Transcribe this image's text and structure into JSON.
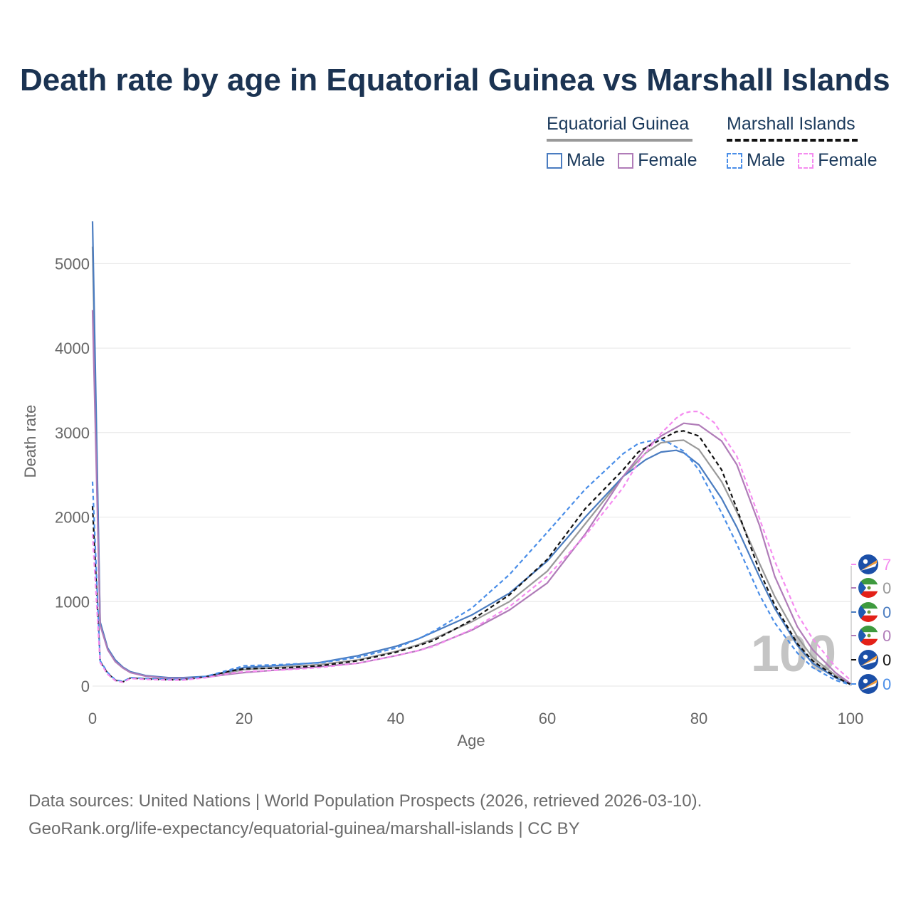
{
  "title": "Death rate by age in Equatorial Guinea vs Marshall Islands",
  "legend": {
    "group1": "Equatorial Guinea",
    "group2": "Marshall Islands",
    "male": "Male",
    "female": "Female"
  },
  "footer": {
    "line1": "Data sources: United Nations | World Population Prospects (2026, retrieved 2026-03-10).",
    "line2": "GeoRank.org/life-expectancy/equatorial-guinea/marshall-islands | CC BY"
  },
  "colors": {
    "eq_male": "#4a7cc0",
    "eq_female": "#b07cb8",
    "eq_total": "#999999",
    "mh_male": "#4a8ee8",
    "mh_female": "#f58cf0",
    "mh_total": "#111111"
  },
  "chart_data": {
    "type": "line",
    "title": "Death rate by age in Equatorial Guinea vs Marshall Islands",
    "xlabel": "Age",
    "ylabel": "Death rate",
    "xlim": [
      0,
      100
    ],
    "ylim": [
      0,
      5500
    ],
    "xticks": [
      0,
      20,
      40,
      60,
      80,
      100
    ],
    "yticks": [
      0,
      1000,
      2000,
      3000,
      4000,
      5000
    ],
    "year_watermark": "100",
    "series": [
      {
        "name": "Equatorial Guinea Total",
        "color": "#999999",
        "dash": "solid",
        "x": [
          0,
          1,
          2,
          3,
          4,
          5,
          7,
          10,
          12,
          15,
          18,
          20,
          25,
          30,
          35,
          40,
          43,
          45,
          50,
          55,
          60,
          65,
          70,
          73,
          75,
          77,
          78,
          80,
          83,
          85,
          88,
          90,
          93,
          95,
          98,
          100
        ],
        "y": [
          5200,
          740,
          440,
          300,
          220,
          165,
          120,
          95,
          95,
          110,
          160,
          195,
          225,
          255,
          310,
          410,
          490,
          560,
          760,
          1000,
          1360,
          1920,
          2480,
          2760,
          2880,
          2905,
          2910,
          2800,
          2420,
          2060,
          1450,
          1060,
          580,
          340,
          130,
          30
        ]
      },
      {
        "name": "Equatorial Guinea Male",
        "color": "#4a7cc0",
        "dash": "solid",
        "x": [
          0,
          1,
          2,
          3,
          4,
          5,
          7,
          10,
          12,
          15,
          18,
          20,
          25,
          30,
          35,
          40,
          43,
          45,
          50,
          55,
          60,
          65,
          70,
          73,
          75,
          77,
          78,
          80,
          83,
          85,
          88,
          90,
          93,
          95,
          98,
          100
        ],
        "y": [
          5500,
          760,
          450,
          310,
          225,
          170,
          125,
          100,
          100,
          115,
          175,
          220,
          245,
          280,
          360,
          470,
          560,
          640,
          840,
          1100,
          1480,
          2000,
          2480,
          2680,
          2770,
          2790,
          2760,
          2620,
          2220,
          1880,
          1290,
          920,
          480,
          270,
          100,
          20
        ]
      },
      {
        "name": "Equatorial Guinea Female",
        "color": "#b07cb8",
        "dash": "solid",
        "x": [
          0,
          1,
          2,
          3,
          4,
          5,
          7,
          10,
          12,
          15,
          18,
          20,
          25,
          30,
          35,
          40,
          43,
          45,
          50,
          55,
          60,
          65,
          70,
          73,
          75,
          77,
          78,
          80,
          83,
          85,
          88,
          90,
          93,
          95,
          98,
          100
        ],
        "y": [
          4450,
          720,
          430,
          290,
          215,
          160,
          118,
          92,
          92,
          105,
          140,
          160,
          195,
          230,
          270,
          360,
          420,
          480,
          660,
          900,
          1220,
          1800,
          2480,
          2820,
          2960,
          3060,
          3110,
          3090,
          2900,
          2620,
          1900,
          1300,
          700,
          430,
          160,
          30
        ]
      },
      {
        "name": "Marshall Islands Total",
        "color": "#111111",
        "dash": "dashed",
        "x": [
          0,
          1,
          2,
          3,
          4,
          5,
          7,
          10,
          12,
          15,
          18,
          20,
          25,
          30,
          35,
          40,
          43,
          45,
          50,
          55,
          60,
          65,
          70,
          72,
          75,
          77,
          78,
          80,
          83,
          85,
          88,
          90,
          93,
          95,
          98,
          100
        ],
        "y": [
          2130,
          290,
          150,
          70,
          50,
          95,
          85,
          75,
          75,
          110,
          175,
          205,
          215,
          240,
          300,
          400,
          480,
          540,
          780,
          1080,
          1500,
          2100,
          2560,
          2770,
          2920,
          3010,
          3020,
          2960,
          2560,
          2100,
          1360,
          960,
          500,
          300,
          110,
          20
        ]
      },
      {
        "name": "Marshall Islands Male",
        "color": "#4a8ee8",
        "dash": "dashed",
        "x": [
          0,
          1,
          2,
          3,
          4,
          5,
          7,
          10,
          12,
          15,
          18,
          20,
          25,
          30,
          35,
          40,
          43,
          45,
          50,
          55,
          60,
          65,
          70,
          72,
          74,
          75,
          76,
          78,
          80,
          83,
          85,
          88,
          90,
          93,
          95,
          98,
          100
        ],
        "y": [
          2420,
          300,
          160,
          75,
          55,
          100,
          90,
          80,
          80,
          115,
          190,
          240,
          255,
          275,
          340,
          450,
          560,
          650,
          920,
          1320,
          1820,
          2330,
          2750,
          2870,
          2910,
          2920,
          2880,
          2780,
          2560,
          2050,
          1680,
          1080,
          750,
          390,
          220,
          70,
          15
        ]
      },
      {
        "name": "Marshall Islands Female",
        "color": "#f58cf0",
        "dash": "dashed",
        "x": [
          0,
          1,
          2,
          3,
          4,
          5,
          7,
          10,
          12,
          15,
          18,
          20,
          25,
          30,
          35,
          40,
          43,
          45,
          50,
          55,
          60,
          65,
          70,
          72,
          75,
          77,
          78,
          79,
          80,
          82,
          85,
          88,
          90,
          93,
          95,
          98,
          100
        ],
        "y": [
          1800,
          280,
          140,
          65,
          45,
          90,
          80,
          72,
          72,
          100,
          150,
          170,
          190,
          220,
          270,
          360,
          420,
          470,
          670,
          940,
          1300,
          1780,
          2350,
          2650,
          2990,
          3170,
          3230,
          3250,
          3250,
          3120,
          2720,
          1980,
          1480,
          850,
          560,
          230,
          70
        ]
      }
    ]
  },
  "end_labels": [
    {
      "text": "7",
      "color": "#f58cf0",
      "flag": "marshall-islands"
    },
    {
      "text": "0",
      "color": "#999999",
      "flag": "equatorial-guinea"
    },
    {
      "text": "0",
      "color": "#4a7cc0",
      "flag": "equatorial-guinea"
    },
    {
      "text": "0",
      "color": "#b07cb8",
      "flag": "equatorial-guinea"
    },
    {
      "text": "0",
      "color": "#111111",
      "flag": "marshall-islands"
    },
    {
      "text": "0",
      "color": "#4a8ee8",
      "flag": "marshall-islands"
    }
  ]
}
